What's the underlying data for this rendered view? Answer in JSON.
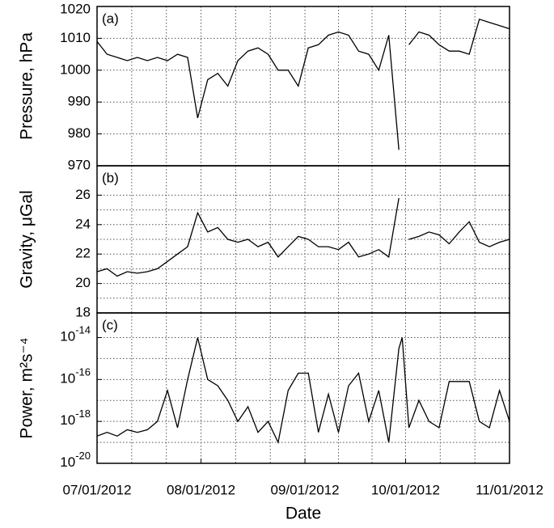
{
  "chart_data": [
    {
      "type": "line",
      "annotation": "(a)",
      "ylabel": "Pressure, hPa",
      "x": [
        "07/01/2012",
        "07/04/2012",
        "07/07/2012",
        "07/10/2012",
        "07/13/2012",
        "07/16/2012",
        "07/19/2012",
        "07/22/2012",
        "07/25/2012",
        "07/28/2012",
        "07/31/2012",
        "08/03/2012",
        "08/06/2012",
        "08/09/2012",
        "08/12/2012",
        "08/15/2012",
        "08/18/2012",
        "08/21/2012",
        "08/24/2012",
        "08/27/2012",
        "08/30/2012",
        "09/02/2012",
        "09/05/2012",
        "09/08/2012",
        "09/11/2012",
        "09/14/2012",
        "09/17/2012",
        "09/20/2012",
        "09/23/2012",
        "09/26/2012",
        "09/29/2012",
        "09/30/2012",
        "10/02/2012",
        "10/05/2012",
        "10/08/2012",
        "10/11/2012",
        "10/14/2012",
        "10/17/2012",
        "10/20/2012",
        "10/23/2012",
        "10/26/2012",
        "10/29/2012",
        "11/01/2012"
      ],
      "series": [
        {
          "name": "Pressure",
          "color": "#000000",
          "values": [
            1009,
            1005,
            1004,
            1003,
            1004,
            1003,
            1004,
            1003,
            1005,
            1004,
            985,
            997,
            999,
            995,
            1003,
            1006,
            1007,
            1005,
            1000,
            1000,
            995,
            1007,
            1008,
            1011,
            1012,
            1011,
            1006,
            1005,
            1000,
            1011,
            975,
            null,
            1008,
            1012,
            1011,
            1008,
            1006,
            1006,
            1005,
            1016,
            1015,
            1014,
            1013
          ]
        }
      ],
      "ylim": [
        970,
        1020
      ],
      "yticks": [
        970,
        980,
        990,
        1000,
        1010,
        1020
      ],
      "grid": true
    },
    {
      "type": "line",
      "annotation": "(b)",
      "ylabel": "Gravity, μGal",
      "x": [
        "07/01/2012",
        "07/04/2012",
        "07/07/2012",
        "07/10/2012",
        "07/13/2012",
        "07/16/2012",
        "07/19/2012",
        "07/22/2012",
        "07/25/2012",
        "07/28/2012",
        "07/31/2012",
        "08/03/2012",
        "08/06/2012",
        "08/09/2012",
        "08/12/2012",
        "08/15/2012",
        "08/18/2012",
        "08/21/2012",
        "08/24/2012",
        "08/27/2012",
        "08/30/2012",
        "09/02/2012",
        "09/05/2012",
        "09/08/2012",
        "09/11/2012",
        "09/14/2012",
        "09/17/2012",
        "09/20/2012",
        "09/23/2012",
        "09/26/2012",
        "09/29/2012",
        "09/30/2012",
        "10/02/2012",
        "10/05/2012",
        "10/08/2012",
        "10/11/2012",
        "10/14/2012",
        "10/17/2012",
        "10/20/2012",
        "10/23/2012",
        "10/26/2012",
        "10/29/2012",
        "11/01/2012"
      ],
      "series": [
        {
          "name": "Gravity",
          "color": "#000000",
          "values": [
            20.8,
            21,
            20.5,
            20.8,
            20.7,
            20.8,
            21,
            21.5,
            22,
            22.5,
            24.8,
            23.5,
            23.8,
            23,
            22.8,
            23,
            22.5,
            22.8,
            21.8,
            22.5,
            23.2,
            23,
            22.5,
            22.5,
            22.3,
            22.8,
            21.8,
            22,
            22.3,
            21.8,
            25.8,
            null,
            23,
            23.2,
            23.5,
            23.3,
            22.7,
            23.5,
            24.2,
            22.8,
            22.5,
            22.8,
            23
          ]
        }
      ],
      "ylim": [
        18,
        28
      ],
      "yticks": [
        18,
        20,
        22,
        24,
        26
      ],
      "grid": true
    },
    {
      "type": "line",
      "annotation": "(c)",
      "ylabel": "Power, m²s⁻⁴",
      "xlabel": "Date",
      "log_y": true,
      "x": [
        "07/01/2012",
        "07/04/2012",
        "07/07/2012",
        "07/10/2012",
        "07/13/2012",
        "07/16/2012",
        "07/19/2012",
        "07/22/2012",
        "07/25/2012",
        "07/28/2012",
        "07/31/2012",
        "08/03/2012",
        "08/06/2012",
        "08/09/2012",
        "08/12/2012",
        "08/15/2012",
        "08/18/2012",
        "08/21/2012",
        "08/24/2012",
        "08/27/2012",
        "08/30/2012",
        "09/02/2012",
        "09/05/2012",
        "09/08/2012",
        "09/11/2012",
        "09/14/2012",
        "09/17/2012",
        "09/20/2012",
        "09/23/2012",
        "09/26/2012",
        "09/29/2012",
        "09/30/2012",
        "10/02/2012",
        "10/05/2012",
        "10/08/2012",
        "10/11/2012",
        "10/14/2012",
        "10/17/2012",
        "10/20/2012",
        "10/23/2012",
        "10/26/2012",
        "10/29/2012",
        "11/01/2012"
      ],
      "series": [
        {
          "name": "Power",
          "color": "#000000",
          "values": [
            2e-19,
            3e-19,
            2e-19,
            4e-19,
            3e-19,
            4e-19,
            1e-18,
            3e-17,
            5e-19,
            1e-16,
            1e-14,
            1e-16,
            5e-17,
            1e-17,
            1e-18,
            5e-18,
            3e-19,
            1e-18,
            1e-19,
            3e-17,
            2e-16,
            2e-16,
            3e-19,
            2e-17,
            3e-19,
            5e-17,
            2e-16,
            1e-18,
            3e-17,
            1e-19,
            3e-15,
            1e-14,
            5e-19,
            1e-17,
            1e-18,
            5e-19,
            8e-17,
            8e-17,
            8e-17,
            1e-18,
            5e-19,
            3e-17,
            1e-18
          ]
        }
      ],
      "ylim": [
        1e-20,
        1.5e-13
      ],
      "yticks": [
        {
          "value": 1e-20,
          "label": "10",
          "exponent": "-20"
        },
        {
          "value": 1e-18,
          "label": "10",
          "exponent": "-18"
        },
        {
          "value": 1e-16,
          "label": "10",
          "exponent": "-16"
        },
        {
          "value": 1e-14,
          "label": "10",
          "exponent": "-14"
        }
      ],
      "xlim": [
        "07/01/2012",
        "11/01/2012"
      ],
      "xticks": [
        "07/01/2012",
        "08/01/2012",
        "09/01/2012",
        "10/01/2012",
        "11/01/2012"
      ],
      "grid": true
    }
  ]
}
